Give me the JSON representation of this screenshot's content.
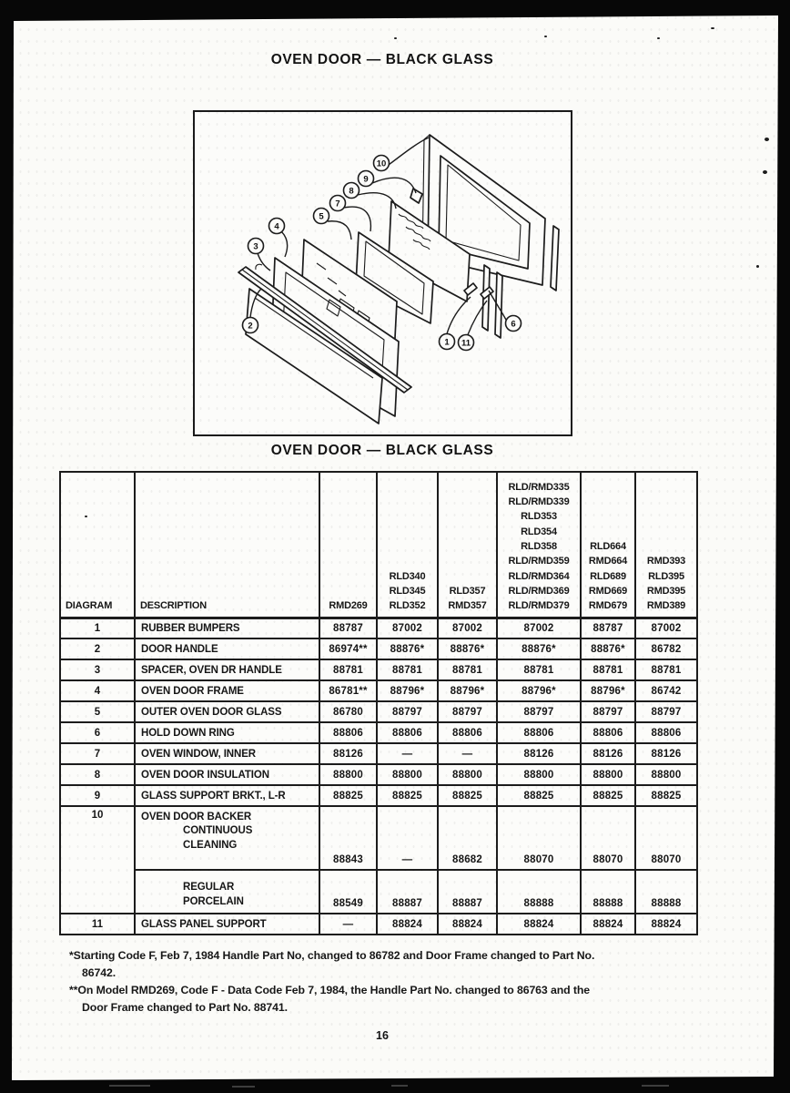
{
  "page": {
    "title": "OVEN DOOR — BLACK GLASS",
    "caption": "OVEN DOOR — BLACK GLASS",
    "page_number": "16"
  },
  "diagram": {
    "callout_labels": [
      "1",
      "2",
      "3",
      "4",
      "5",
      "6",
      "7",
      "8",
      "9",
      "10",
      "11"
    ]
  },
  "table": {
    "columns": [
      {
        "header": [
          "DIAGRAM"
        ]
      },
      {
        "header": [
          "DESCRIPTION"
        ]
      },
      {
        "header": [
          "RMD269"
        ]
      },
      {
        "header": [
          "RLD340",
          "RLD345",
          "RLD352"
        ]
      },
      {
        "header": [
          "RLD357",
          "RMD357"
        ]
      },
      {
        "header": [
          "RLD/RMD335",
          "RLD/RMD339",
          "RLD353",
          "RLD354",
          "RLD358",
          "RLD/RMD359",
          "RLD/RMD364",
          "RLD/RMD369",
          "RLD/RMD379"
        ]
      },
      {
        "header": [
          "RLD664",
          "RMD664",
          "RLD689",
          "RMD669",
          "RMD679"
        ]
      },
      {
        "header": [
          "RMD393",
          "RLD395",
          "RMD395",
          "RMD389"
        ]
      }
    ],
    "rows": [
      {
        "diagram": "1",
        "description": "RUBBER BUMPERS",
        "values": [
          "88787",
          "87002",
          "87002",
          "87002",
          "88787",
          "87002"
        ]
      },
      {
        "diagram": "2",
        "description": "DOOR HANDLE",
        "values": [
          "86974**",
          "88876*",
          "88876*",
          "88876*",
          "88876*",
          "86782"
        ]
      },
      {
        "diagram": "3",
        "description": "SPACER, OVEN DR HANDLE",
        "values": [
          "88781",
          "88781",
          "88781",
          "88781",
          "88781",
          "88781"
        ]
      },
      {
        "diagram": "4",
        "description": "OVEN DOOR FRAME",
        "values": [
          "86781**",
          "88796*",
          "88796*",
          "88796*",
          "88796*",
          "86742"
        ]
      },
      {
        "diagram": "5",
        "description": "OUTER OVEN DOOR GLASS",
        "values": [
          "86780",
          "88797",
          "88797",
          "88797",
          "88797",
          "88797"
        ]
      },
      {
        "diagram": "6",
        "description": "HOLD DOWN RING",
        "values": [
          "88806",
          "88806",
          "88806",
          "88806",
          "88806",
          "88806"
        ]
      },
      {
        "diagram": "7",
        "description": "OVEN WINDOW, INNER",
        "values": [
          "88126",
          "—",
          "—",
          "88126",
          "88126",
          "88126"
        ]
      },
      {
        "diagram": "8",
        "description": "OVEN DOOR INSULATION",
        "values": [
          "88800",
          "88800",
          "88800",
          "88800",
          "88800",
          "88800"
        ]
      },
      {
        "diagram": "9",
        "description": "GLASS SUPPORT BRKT., L-R",
        "values": [
          "88825",
          "88825",
          "88825",
          "88825",
          "88825",
          "88825"
        ]
      }
    ],
    "row10": {
      "diagram": "10",
      "description": "OVEN DOOR BACKER",
      "sub_rows": [
        {
          "description_lines": [
            "CONTINUOUS",
            "CLEANING"
          ],
          "values": [
            "88843",
            "—",
            "88682",
            "88070",
            "88070",
            "88070"
          ]
        },
        {
          "description_lines": [
            "REGULAR",
            "PORCELAIN"
          ],
          "values": [
            "88549",
            "88887",
            "88887",
            "88888",
            "88888",
            "88888"
          ]
        }
      ]
    },
    "row11": {
      "diagram": "11",
      "description": "GLASS PANEL SUPPORT",
      "values": [
        "—",
        "88824",
        "88824",
        "88824",
        "88824",
        "88824"
      ]
    }
  },
  "footnotes": [
    {
      "lines": [
        "*Starting Code F, Feb 7, 1984 Handle Part No, changed to 86782 and Door Frame changed to Part No.",
        "86742."
      ]
    },
    {
      "lines": [
        "**On Model RMD269, Code F - Data Code Feb 7, 1984, the Handle Part No. changed to 86763 and the",
        "Door Frame changed to Part No. 88741."
      ]
    }
  ]
}
